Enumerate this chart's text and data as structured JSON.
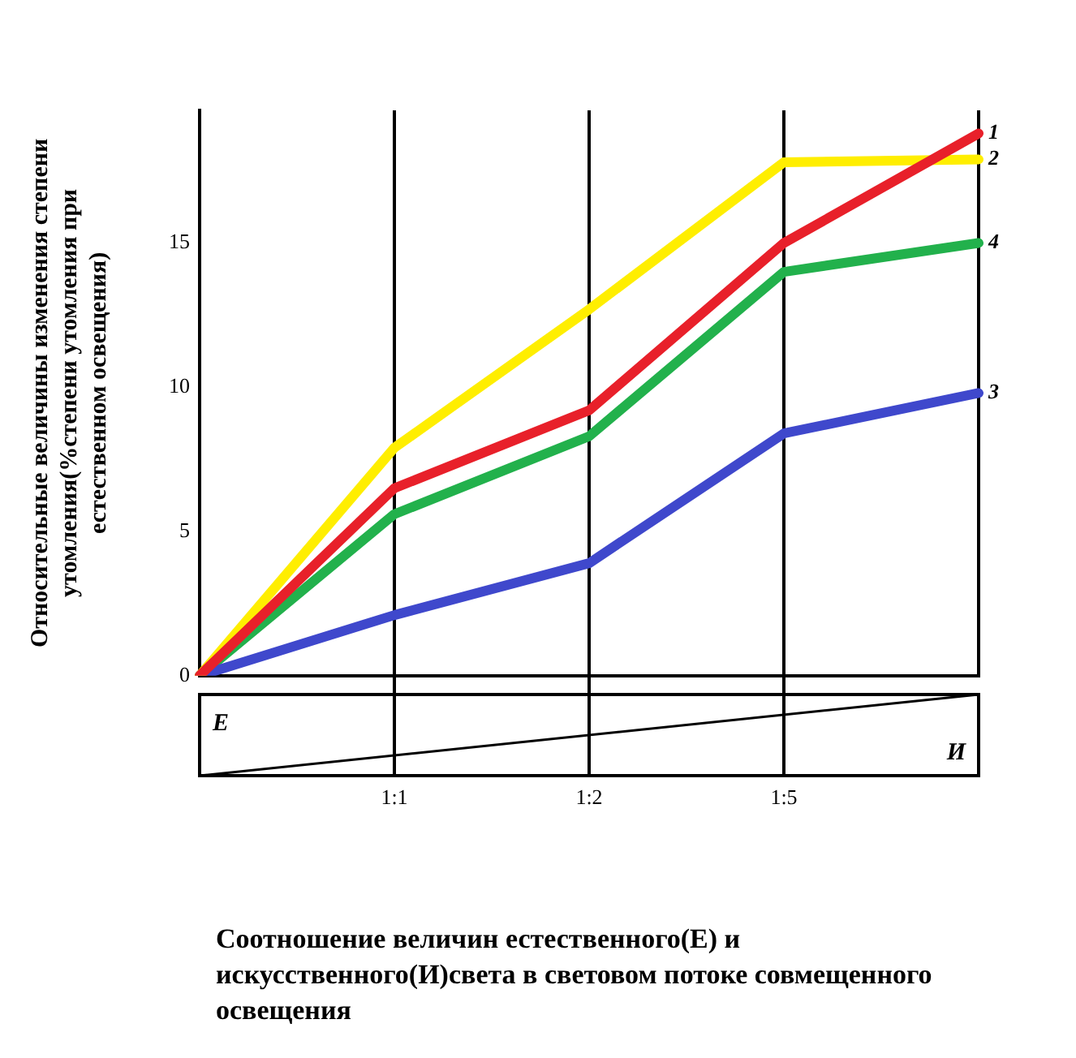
{
  "chart_data": {
    "type": "line",
    "ylabel": "Относительные величины изменения степени\nутомления(%степени утомления при\nестественном освещения)",
    "xlabel": "Соотношение величин естественного(Е) и искусственного(И)света в световом потоке совмещенного освещения",
    "categories": [
      null,
      "1:1",
      "1:2",
      "1:5",
      null
    ],
    "series": [
      {
        "name": "1",
        "color": "#e8202a",
        "values": [
          0,
          6.5,
          9.2,
          15,
          18.8
        ]
      },
      {
        "name": "2",
        "color": "#ffee00",
        "values": [
          0,
          7.9,
          12.7,
          17.8,
          17.9
        ]
      },
      {
        "name": "3",
        "color": "#3f48cc",
        "values": [
          0,
          2.1,
          3.9,
          8.4,
          9.8
        ]
      },
      {
        "name": "4",
        "color": "#22b14c",
        "values": [
          0,
          5.6,
          8.3,
          14,
          15
        ]
      }
    ],
    "ylim": [
      0,
      19.6
    ],
    "yticks": [
      0,
      5,
      10,
      15
    ],
    "grid": "x",
    "legend": false,
    "marker": "none",
    "line_style": "solid",
    "annotations": [
      "Е",
      "И"
    ]
  }
}
